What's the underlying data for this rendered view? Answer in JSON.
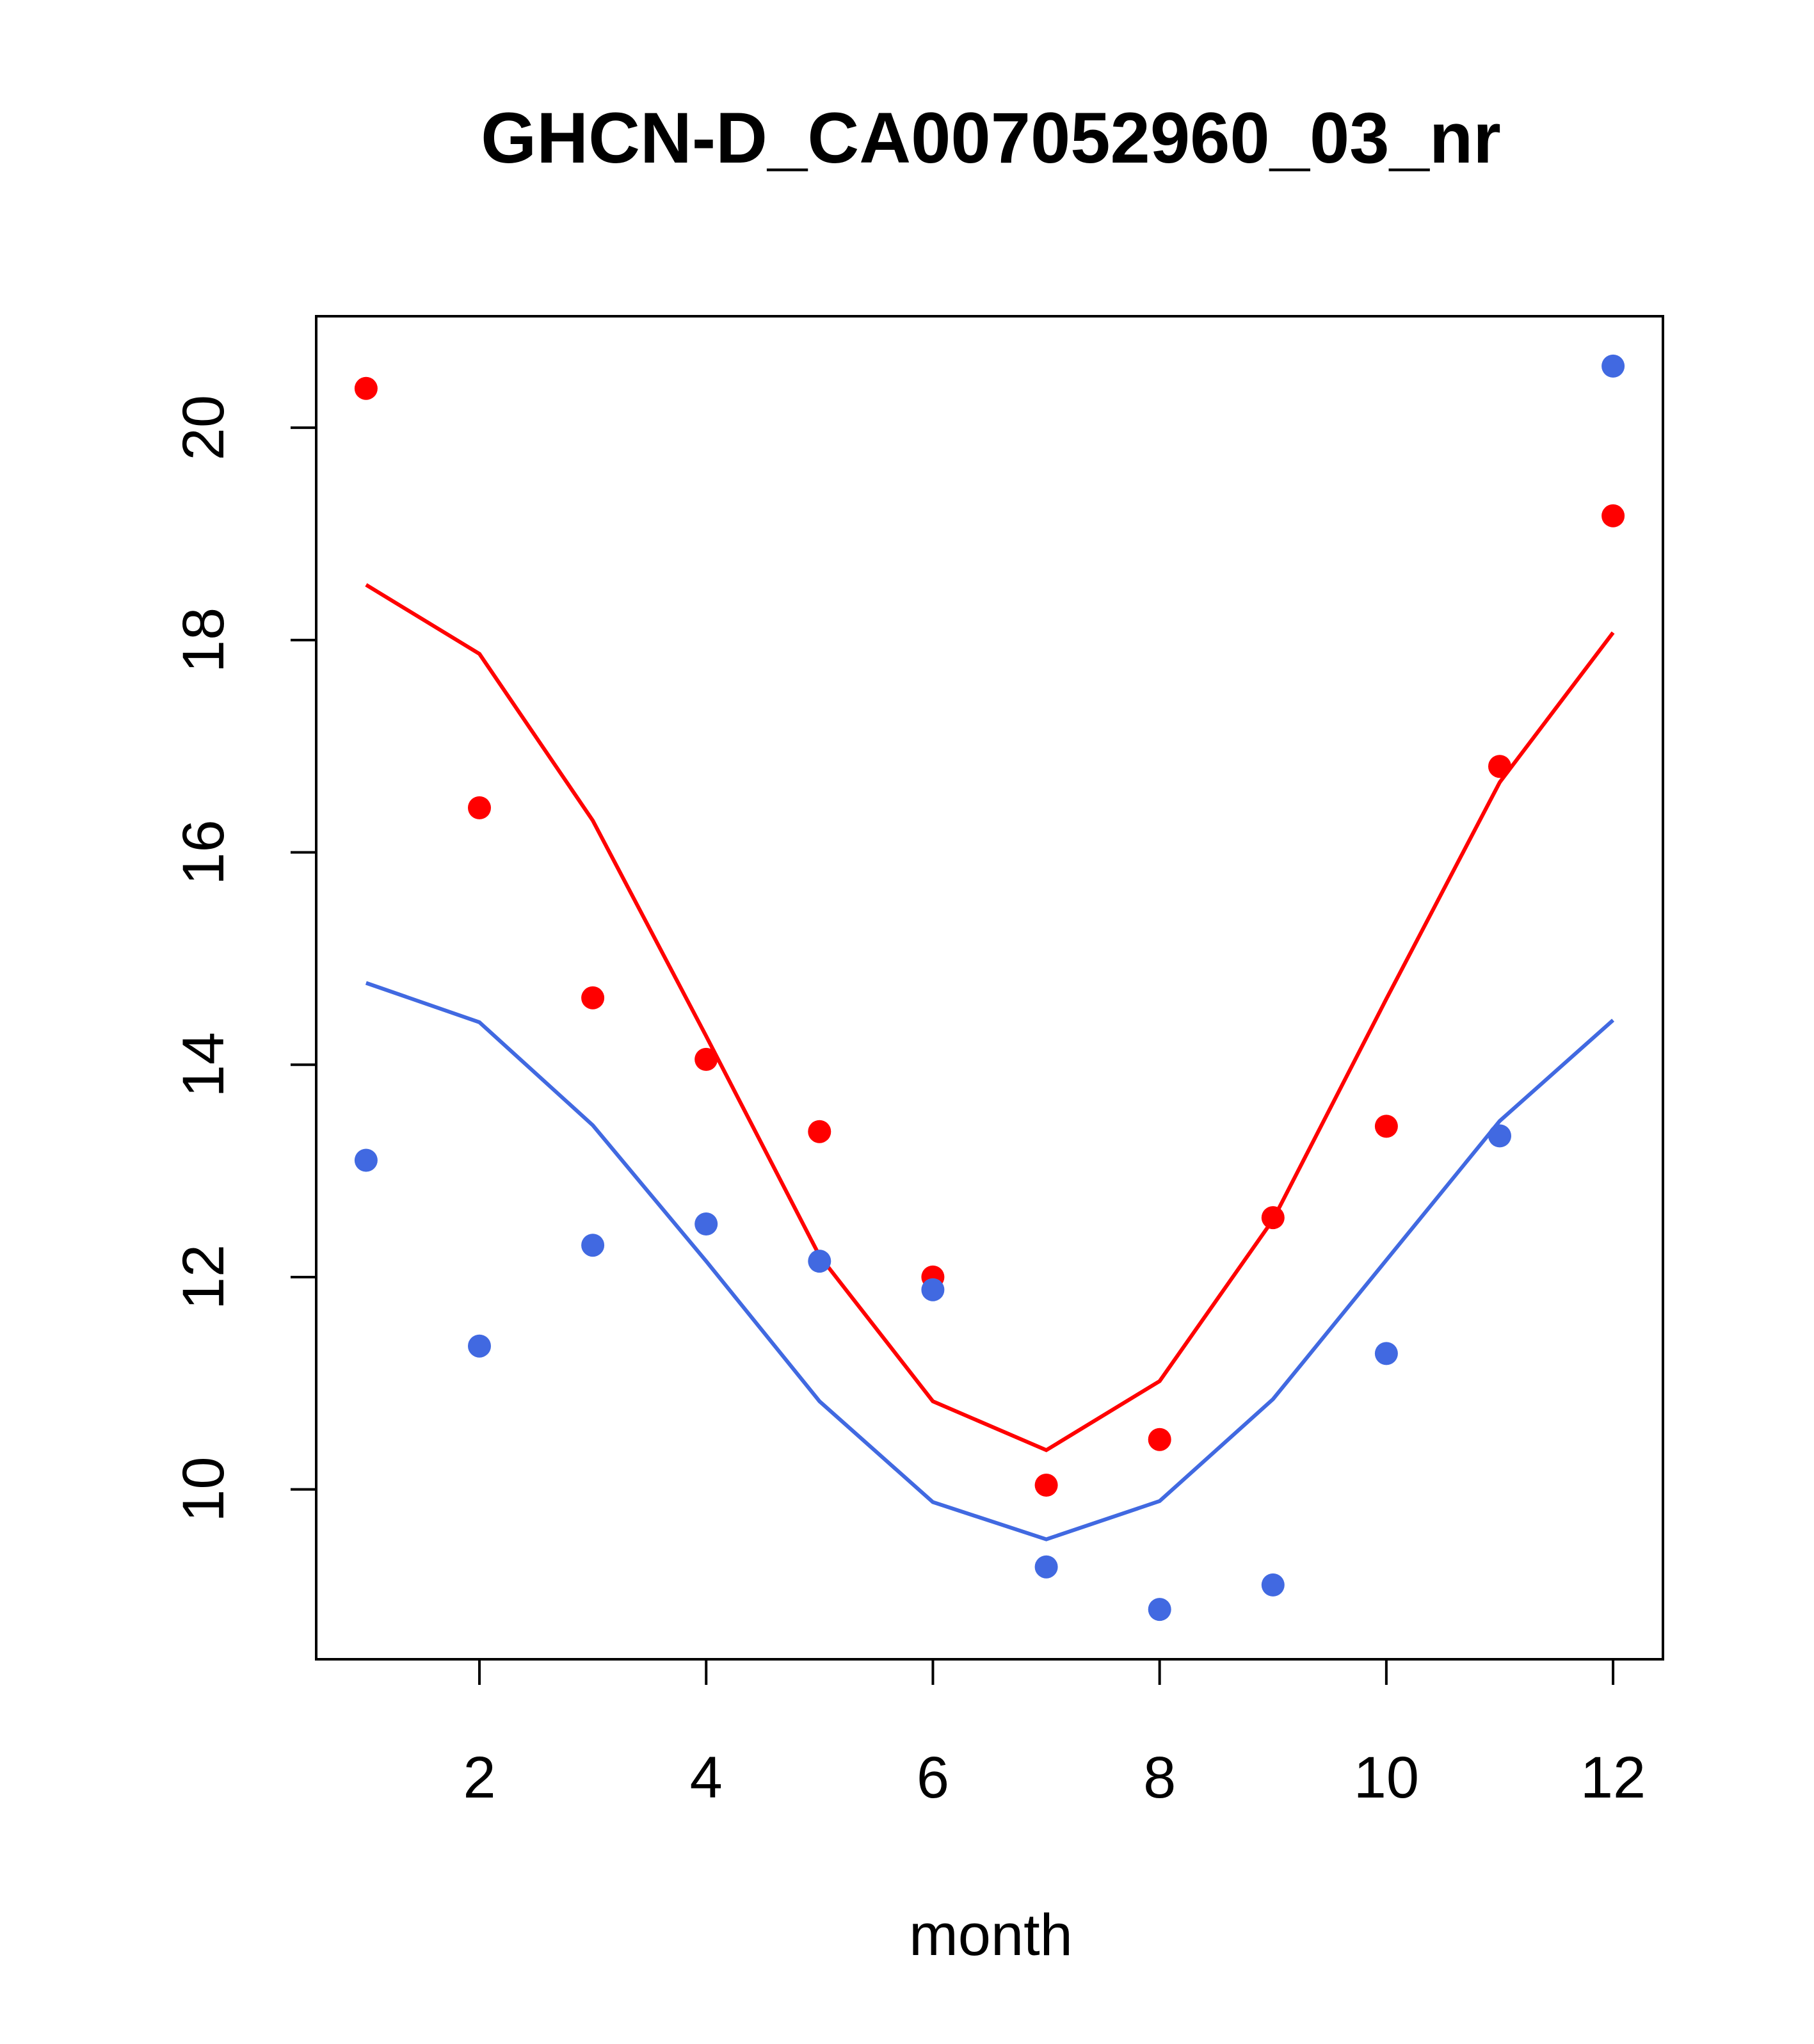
{
  "chart_data": {
    "type": "line",
    "title": "GHCN-D_CA007052960_03_nr",
    "xlabel": "month",
    "ylabel": "",
    "xlim": [
      0.56,
      12.44
    ],
    "ylim": [
      8.4,
      21.05
    ],
    "x_ticks": [
      2,
      4,
      6,
      8,
      10,
      12
    ],
    "y_ticks": [
      10,
      12,
      14,
      16,
      18,
      20
    ],
    "x_tick_labels": [
      "2",
      "4",
      "6",
      "8",
      "10",
      "12"
    ],
    "y_tick_labels": [
      "10",
      "12",
      "14",
      "16",
      "18",
      "20"
    ],
    "grid": false,
    "legend": "none",
    "x": [
      1,
      2,
      3,
      4,
      5,
      6,
      7,
      8,
      9,
      10,
      11,
      12
    ],
    "series": [
      {
        "color": "#ff0000",
        "line": [
          18.52,
          17.87,
          16.3,
          14.27,
          12.2,
          10.83,
          10.37,
          11.02,
          12.54,
          14.62,
          16.66,
          18.07
        ],
        "points": [
          20.37,
          16.42,
          14.63,
          14.05,
          13.37,
          12.0,
          10.04,
          10.47,
          12.56,
          13.42,
          16.81,
          19.17
        ]
      },
      {
        "color": "#4169e1",
        "line": [
          14.77,
          14.4,
          13.43,
          12.15,
          10.83,
          9.88,
          9.53,
          9.89,
          10.85,
          12.16,
          13.47,
          14.42
        ],
        "points": [
          13.1,
          11.35,
          12.3,
          12.5,
          12.15,
          11.88,
          9.27,
          8.87,
          9.1,
          11.28,
          13.33,
          20.58
        ]
      }
    ]
  }
}
